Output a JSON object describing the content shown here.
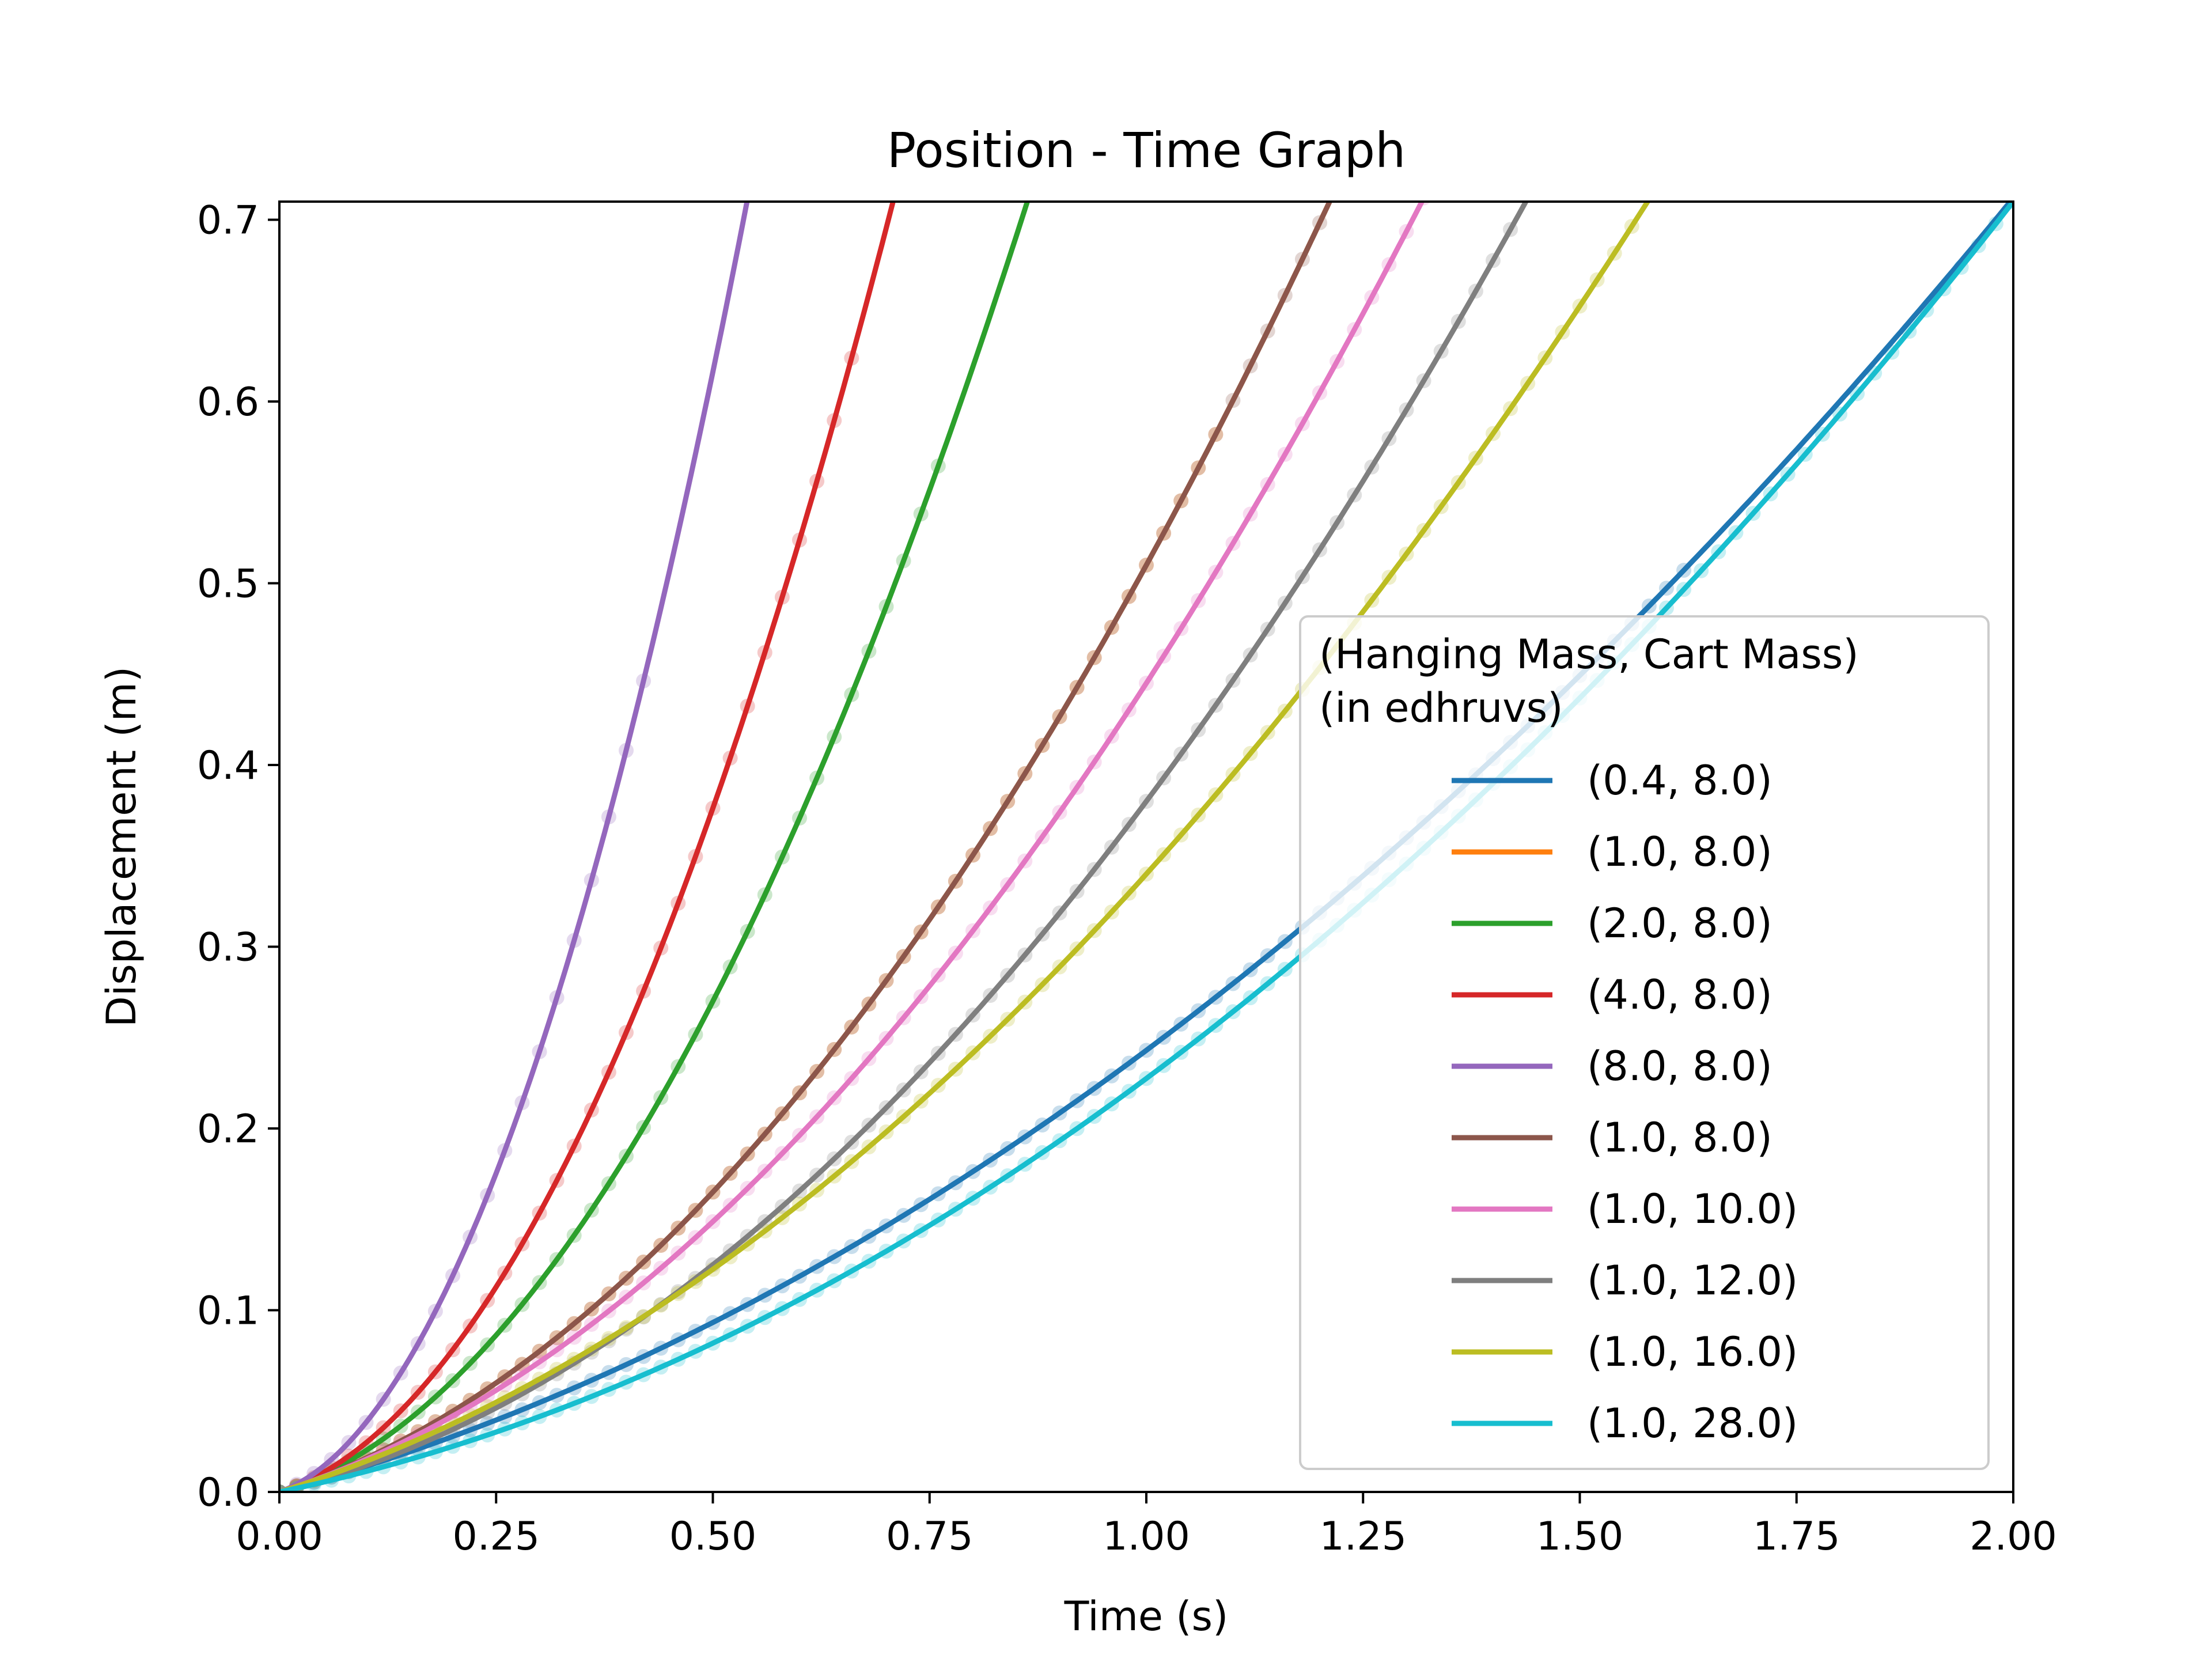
{
  "chart_data": {
    "type": "line",
    "title": "Position - Time Graph",
    "xlabel": "Time (s)",
    "ylabel": "Displacement (m)",
    "xlim": [
      0.0,
      2.0
    ],
    "ylim": [
      0.0,
      0.71
    ],
    "x_ticks": [
      "0.00",
      "0.25",
      "0.50",
      "0.75",
      "1.00",
      "1.25",
      "1.50",
      "1.75",
      "2.00"
    ],
    "y_ticks": [
      "0.0",
      "0.1",
      "0.2",
      "0.3",
      "0.4",
      "0.5",
      "0.6",
      "0.7"
    ],
    "grid": false,
    "legend": {
      "position": "lower-right",
      "title_line1": "(Hanging Mass, Cart Mass)",
      "title_line2": "(in edhruvs)"
    },
    "series": [
      {
        "name": "(0.4, 8.0)",
        "color": "#1f77b4",
        "fit": {
          "v0": 0.13,
          "a": 0.226
        },
        "measured_until": 1.62
      },
      {
        "name": "(1.0, 8.0)",
        "color": "#ff7f0e",
        "fit": {
          "v0": 0.15,
          "a": 0.72
        },
        "measured_until": 1.08
      },
      {
        "name": "(2.0, 8.0)",
        "color": "#2ca02c",
        "fit": {
          "v0": 0.15,
          "a": 1.56
        },
        "measured_until": 0.76
      },
      {
        "name": "(4.0, 8.0)",
        "color": "#d62728",
        "fit": {
          "v0": 0.15,
          "a": 2.41
        },
        "measured_until": 0.67
      },
      {
        "name": "(8.0, 8.0)",
        "color": "#9467bd",
        "fit": {
          "v0": 0.17,
          "a": 4.25
        },
        "measured_until": 0.42
      },
      {
        "name": "(1.0, 8.0)",
        "color": "#8c564b",
        "fit": {
          "v0": 0.15,
          "a": 0.72
        },
        "measured_until": 1.2
      },
      {
        "name": "(1.0, 10.0)",
        "color": "#e377c2",
        "fit": {
          "v0": 0.15,
          "a": 0.59
        },
        "measured_until": 1.32
      },
      {
        "name": "(1.0, 12.0)",
        "color": "#7f7f7f",
        "fit": {
          "v0": 0.12,
          "a": 0.52
        },
        "measured_until": 1.43
      },
      {
        "name": "(1.0, 16.0)",
        "color": "#bcbd22",
        "fit": {
          "v0": 0.15,
          "a": 0.38
        },
        "measured_until": 1.56
      },
      {
        "name": "(1.0, 28.0)",
        "color": "#17becf",
        "fit": {
          "v0": 0.1,
          "a": 0.255
        },
        "measured_until": 2.0
      }
    ]
  }
}
